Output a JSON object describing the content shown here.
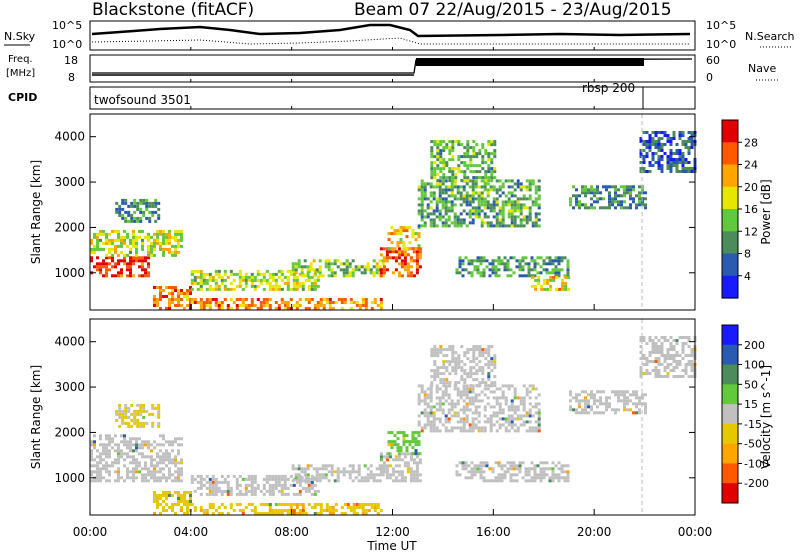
{
  "header": {
    "station": "Blackstone (fitACF)",
    "beam_dates": "Beam 07  22/Aug/2015 - 23/Aug/2015"
  },
  "noise_panel": {
    "left_label": "N.Sky",
    "right_label": "N.Search",
    "tick_top_left": "10^5",
    "tick_bottom_left": "10^0",
    "tick_top_right": "10^5",
    "tick_bottom_right": "10^0"
  },
  "freq_panel": {
    "label_line1": "Freq.",
    "label_line2": "[MHz]",
    "tick_top_left": "18",
    "tick_bottom_left": "8",
    "right_label": "Nave",
    "tick_top_right": "60",
    "tick_bottom_right": "0"
  },
  "cpid_panel": {
    "label": "CPID",
    "segments": [
      {
        "name": "twofsound 3501",
        "start_hour": 0.0
      },
      {
        "name": "rbsp 200",
        "start_hour": 21.9
      }
    ]
  },
  "chart_data": [
    {
      "type": "heatmap",
      "title": "",
      "quantity": "Power",
      "xlabel": "",
      "ylabel": "Slant Range [km]",
      "x_range_hours": [
        0,
        24
      ],
      "y_range_km": [
        180,
        4500
      ],
      "xticks": [
        "00:00",
        "04:00",
        "08:00",
        "12:00",
        "16:00",
        "20:00",
        "00:00"
      ],
      "yticks": [
        1000,
        2000,
        3000,
        4000
      ],
      "colorbar": {
        "label": "Power [dB]",
        "ticks": [
          "4",
          "8",
          "12",
          "16",
          "20",
          "24",
          "28"
        ],
        "range": [
          0,
          30
        ],
        "colors": [
          "#1a1aff",
          "#2b5bb0",
          "#4b8c5a",
          "#62c83c",
          "#e6e600",
          "#ffa500",
          "#ff5a00",
          "#e00000"
        ]
      },
      "regions": [
        {
          "t0": 0.0,
          "t1": 2.3,
          "r0": 900,
          "r1": 1350,
          "level": 27
        },
        {
          "t0": 0.0,
          "t1": 3.6,
          "r0": 1350,
          "r1": 1900,
          "level": 16
        },
        {
          "t0": 1.0,
          "t1": 2.7,
          "r0": 2100,
          "r1": 2600,
          "level": 9
        },
        {
          "t0": 2.5,
          "t1": 4.0,
          "r0": 180,
          "r1": 700,
          "level": 23
        },
        {
          "t0": 4.0,
          "t1": 11.5,
          "r0": 180,
          "r1": 420,
          "level": 22
        },
        {
          "t0": 4.0,
          "t1": 9.0,
          "r0": 600,
          "r1": 1050,
          "level": 15
        },
        {
          "t0": 8.0,
          "t1": 11.6,
          "r0": 900,
          "r1": 1250,
          "level": 14
        },
        {
          "t0": 11.5,
          "t1": 13.1,
          "r0": 900,
          "r1": 1500,
          "level": 24
        },
        {
          "t0": 11.8,
          "t1": 13.0,
          "r0": 1500,
          "r1": 2000,
          "level": 19
        },
        {
          "t0": 13.0,
          "t1": 17.8,
          "r0": 2000,
          "r1": 3000,
          "level": 11
        },
        {
          "t0": 13.5,
          "t1": 16.0,
          "r0": 3000,
          "r1": 3900,
          "level": 12
        },
        {
          "t0": 14.5,
          "t1": 19.0,
          "r0": 900,
          "r1": 1300,
          "level": 10
        },
        {
          "t0": 17.5,
          "t1": 19.0,
          "r0": 600,
          "r1": 900,
          "level": 18
        },
        {
          "t0": 19.0,
          "t1": 22.0,
          "r0": 2400,
          "r1": 2900,
          "level": 9
        },
        {
          "t0": 21.8,
          "t1": 24.0,
          "r0": 3200,
          "r1": 4100,
          "level": 6
        }
      ]
    },
    {
      "type": "heatmap",
      "title": "",
      "quantity": "Velocity",
      "xlabel": "Time UT",
      "ylabel": "Slant Range [km]",
      "x_range_hours": [
        0,
        24
      ],
      "y_range_km": [
        180,
        4500
      ],
      "xticks": [
        "00:00",
        "04:00",
        "08:00",
        "12:00",
        "16:00",
        "20:00",
        "00:00"
      ],
      "yticks": [
        1000,
        2000,
        3000,
        4000
      ],
      "colorbar": {
        "label": "Velocity [m s^-1]",
        "ticks": [
          "200",
          "100",
          "50",
          "15",
          "-15",
          "-50",
          "-100",
          "-200"
        ],
        "colors": [
          "#1a1aff",
          "#2b5bb0",
          "#4b8c5a",
          "#62c83c",
          "#c0c0c0",
          "#e6c800",
          "#ffa500",
          "#ff5a00",
          "#e00000"
        ]
      },
      "regions": [
        {
          "t0": 0.0,
          "t1": 3.6,
          "r0": 900,
          "r1": 1900,
          "level": 0
        },
        {
          "t0": 1.0,
          "t1": 2.7,
          "r0": 2100,
          "r1": 2600,
          "level": -20
        },
        {
          "t0": 2.5,
          "t1": 4.0,
          "r0": 180,
          "r1": 700,
          "level": -30
        },
        {
          "t0": 4.0,
          "t1": 11.5,
          "r0": 180,
          "r1": 420,
          "level": -40
        },
        {
          "t0": 4.0,
          "t1": 9.0,
          "r0": 600,
          "r1": 1050,
          "level": 0
        },
        {
          "t0": 8.0,
          "t1": 11.6,
          "r0": 900,
          "r1": 1250,
          "level": 0
        },
        {
          "t0": 11.5,
          "t1": 13.1,
          "r0": 900,
          "r1": 1500,
          "level": 0
        },
        {
          "t0": 11.8,
          "t1": 13.0,
          "r0": 1500,
          "r1": 2000,
          "level": 30
        },
        {
          "t0": 13.0,
          "t1": 17.8,
          "r0": 2000,
          "r1": 3000,
          "level": 0
        },
        {
          "t0": 13.5,
          "t1": 16.0,
          "r0": 3000,
          "r1": 3900,
          "level": 0
        },
        {
          "t0": 14.5,
          "t1": 19.0,
          "r0": 900,
          "r1": 1300,
          "level": 0
        },
        {
          "t0": 19.0,
          "t1": 22.0,
          "r0": 2400,
          "r1": 2900,
          "level": 0
        },
        {
          "t0": 21.8,
          "t1": 24.0,
          "r0": 3200,
          "r1": 4100,
          "level": 0
        }
      ]
    }
  ]
}
